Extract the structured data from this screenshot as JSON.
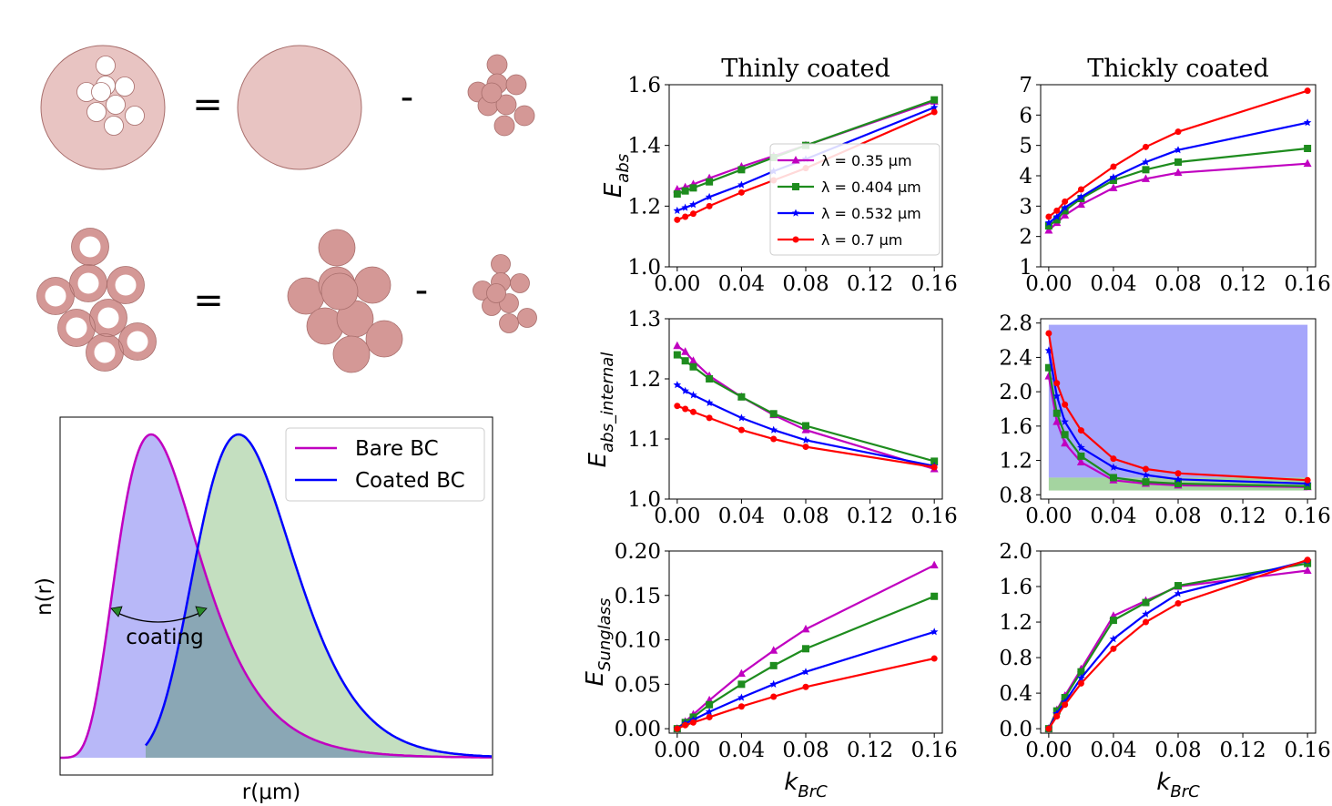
{
  "colors": {
    "particle": "#e8c4c2",
    "particle_dark": "#d49896",
    "particle_edge": "#a86e6c",
    "magenta": "#c000c0",
    "green": "#1e8c1e",
    "blue": "#0000ff",
    "red": "#ff0000",
    "fill_blue": "#b8b8f8",
    "fill_green": "#c4dfc0",
    "fill_overlap": "#8aa7b5",
    "shade_blue": "#a6a6fb",
    "shade_green": "#a4d4a0"
  },
  "schematic": {
    "equals": [
      "=",
      "="
    ],
    "minus": [
      "-",
      "-"
    ]
  },
  "distribution": {
    "legend": [
      "Bare BC",
      "Coated BC"
    ],
    "annotation": "coating",
    "xlabel": "r(μm)",
    "ylabel": "n(r)"
  },
  "legend_wavelengths": [
    "λ = 0.35 μm",
    "λ = 0.404 μm",
    "λ = 0.532 μm",
    "λ = 0.7 μm"
  ],
  "chart_data": [
    {
      "id": "eabs_thin",
      "type": "line",
      "title": "Thinly coated",
      "ylabel": "E_abs",
      "xlabel": "",
      "x": [
        0,
        0.005,
        0.01,
        0.02,
        0.04,
        0.06,
        0.08,
        0.16
      ],
      "xlim": [
        -0.005,
        0.165
      ],
      "ylim": [
        1.0,
        1.6
      ],
      "xticks": [
        "0.00",
        "0.04",
        "0.08",
        "0.12",
        "0.16"
      ],
      "yticks": [
        "1.0",
        "1.2",
        "1.4",
        "1.6"
      ],
      "series": [
        {
          "values": [
            1.255,
            1.262,
            1.272,
            1.292,
            1.33,
            1.365,
            1.4,
            1.545
          ]
        },
        {
          "values": [
            1.24,
            1.25,
            1.26,
            1.28,
            1.32,
            1.36,
            1.4,
            1.55
          ]
        },
        {
          "values": [
            1.185,
            1.195,
            1.205,
            1.23,
            1.27,
            1.315,
            1.355,
            1.525
          ]
        },
        {
          "values": [
            1.155,
            1.165,
            1.175,
            1.2,
            1.245,
            1.285,
            1.325,
            1.51
          ]
        }
      ]
    },
    {
      "id": "eabs_thick",
      "type": "line",
      "title": "Thickly coated",
      "ylabel": "",
      "xlabel": "",
      "x": [
        0,
        0.005,
        0.01,
        0.02,
        0.04,
        0.06,
        0.08,
        0.16
      ],
      "xlim": [
        -0.005,
        0.165
      ],
      "ylim": [
        1,
        7
      ],
      "xticks": [
        "0.00",
        "0.04",
        "0.08",
        "0.12",
        "0.16"
      ],
      "yticks": [
        "1",
        "2",
        "3",
        "4",
        "5",
        "6",
        "7"
      ],
      "series": [
        {
          "values": [
            2.2,
            2.45,
            2.7,
            3.05,
            3.6,
            3.9,
            4.1,
            4.4
          ]
        },
        {
          "values": [
            2.35,
            2.55,
            2.85,
            3.25,
            3.85,
            4.2,
            4.45,
            4.9
          ]
        },
        {
          "values": [
            2.45,
            2.65,
            2.95,
            3.3,
            3.95,
            4.45,
            4.85,
            5.75
          ]
        },
        {
          "values": [
            2.65,
            2.85,
            3.15,
            3.55,
            4.3,
            4.95,
            5.45,
            6.8
          ]
        }
      ]
    },
    {
      "id": "eint_thin",
      "type": "line",
      "title": "",
      "ylabel": "E_abs_internal",
      "xlabel": "",
      "x": [
        0,
        0.005,
        0.01,
        0.02,
        0.04,
        0.06,
        0.08,
        0.16
      ],
      "xlim": [
        -0.005,
        0.165
      ],
      "ylim": [
        1.0,
        1.3
      ],
      "xticks": [
        "0.00",
        "0.04",
        "0.08",
        "0.12",
        "0.16"
      ],
      "yticks": [
        "1.0",
        "1.1",
        "1.2",
        "1.3"
      ],
      "series": [
        {
          "values": [
            1.255,
            1.245,
            1.23,
            1.205,
            1.17,
            1.14,
            1.115,
            1.05
          ]
        },
        {
          "values": [
            1.24,
            1.23,
            1.22,
            1.2,
            1.17,
            1.142,
            1.122,
            1.063
          ]
        },
        {
          "values": [
            1.19,
            1.18,
            1.173,
            1.16,
            1.135,
            1.115,
            1.098,
            1.055
          ]
        },
        {
          "values": [
            1.155,
            1.15,
            1.145,
            1.135,
            1.115,
            1.1,
            1.087,
            1.053
          ]
        }
      ]
    },
    {
      "id": "eint_thick",
      "type": "line",
      "title": "",
      "ylabel": "",
      "xlabel": "",
      "x": [
        0,
        0.005,
        0.01,
        0.02,
        0.04,
        0.06,
        0.08,
        0.16
      ],
      "xlim": [
        -0.005,
        0.165
      ],
      "ylim": [
        0.75,
        2.85
      ],
      "xticks": [
        "0.00",
        "0.04",
        "0.08",
        "0.12",
        "0.16"
      ],
      "yticks": [
        "0.8",
        "1.2",
        "1.6",
        "2.0",
        "2.4",
        "2.8"
      ],
      "shaded_bands": [
        {
          "y0": 1.0,
          "y1": 2.78,
          "color": "shade_blue"
        },
        {
          "y0": 0.85,
          "y1": 1.0,
          "color": "shade_green"
        }
      ],
      "series": [
        {
          "values": [
            2.18,
            1.65,
            1.4,
            1.18,
            0.97,
            0.93,
            0.91,
            0.89
          ]
        },
        {
          "values": [
            2.28,
            1.75,
            1.5,
            1.25,
            1.0,
            0.95,
            0.93,
            0.9
          ]
        },
        {
          "values": [
            2.48,
            1.95,
            1.65,
            1.35,
            1.12,
            1.03,
            0.98,
            0.93
          ]
        },
        {
          "values": [
            2.68,
            2.1,
            1.85,
            1.55,
            1.22,
            1.1,
            1.05,
            0.97
          ]
        }
      ]
    },
    {
      "id": "esun_thin",
      "type": "line",
      "title": "",
      "ylabel": "E_Sunglass",
      "xlabel": "k_BrC",
      "x": [
        0,
        0.005,
        0.01,
        0.02,
        0.04,
        0.06,
        0.08,
        0.16
      ],
      "xlim": [
        -0.005,
        0.165
      ],
      "ylim": [
        -0.005,
        0.2
      ],
      "xticks": [
        "0.00",
        "0.04",
        "0.08",
        "0.12",
        "0.16"
      ],
      "yticks": [
        "0.00",
        "0.05",
        "0.10",
        "0.15",
        "0.20"
      ],
      "series": [
        {
          "values": [
            0,
            0.008,
            0.016,
            0.032,
            0.062,
            0.088,
            0.112,
            0.184
          ]
        },
        {
          "values": [
            0,
            0.007,
            0.013,
            0.027,
            0.05,
            0.071,
            0.09,
            0.149
          ]
        },
        {
          "values": [
            0,
            0.006,
            0.01,
            0.019,
            0.035,
            0.05,
            0.064,
            0.109
          ]
        },
        {
          "values": [
            0,
            0.004,
            0.007,
            0.013,
            0.025,
            0.036,
            0.047,
            0.079
          ]
        }
      ]
    },
    {
      "id": "esun_thick",
      "type": "line",
      "title": "",
      "ylabel": "",
      "xlabel": "k_BrC",
      "x": [
        0,
        0.005,
        0.01,
        0.02,
        0.04,
        0.06,
        0.08,
        0.16
      ],
      "xlim": [
        -0.005,
        0.165
      ],
      "ylim": [
        -0.05,
        2.0
      ],
      "xticks": [
        "0.00",
        "0.04",
        "0.08",
        "0.12",
        "0.16"
      ],
      "yticks": [
        "0.0",
        "0.4",
        "0.8",
        "1.2",
        "1.6",
        "2.0"
      ],
      "series": [
        {
          "values": [
            0,
            0.21,
            0.37,
            0.67,
            1.27,
            1.44,
            1.6,
            1.78
          ]
        },
        {
          "values": [
            0,
            0.2,
            0.35,
            0.64,
            1.22,
            1.42,
            1.61,
            1.86
          ]
        },
        {
          "values": [
            0,
            0.17,
            0.3,
            0.57,
            1.01,
            1.29,
            1.52,
            1.89
          ]
        },
        {
          "values": [
            0,
            0.14,
            0.27,
            0.51,
            0.9,
            1.2,
            1.41,
            1.9
          ]
        }
      ]
    }
  ]
}
